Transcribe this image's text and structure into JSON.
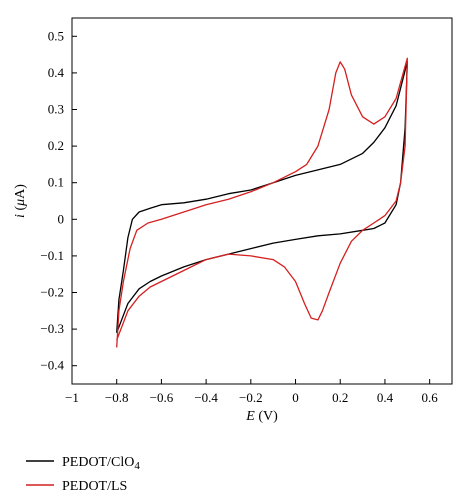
{
  "chart_data": {
    "type": "line",
    "xlabel": {
      "symbol": "E",
      "unit": " (V)"
    },
    "ylabel": {
      "symbol": "i",
      "unit_prefix": " (",
      "unit_mu": "μ",
      "unit_suffix": "A)"
    },
    "xlim": [
      -1,
      0.7
    ],
    "ylim": [
      -0.45,
      0.55
    ],
    "x_ticks": [
      -1,
      -0.8,
      -0.6,
      -0.4,
      -0.2,
      0,
      0.2,
      0.4,
      0.6
    ],
    "x_tick_labels": [
      "−1",
      "−0.8",
      "−0.6",
      "−0.4",
      "−0.2",
      "0",
      "0.2",
      "0.4",
      "0.6"
    ],
    "y_ticks": [
      -0.4,
      -0.3,
      -0.2,
      -0.1,
      0,
      0.1,
      0.2,
      0.3,
      0.4,
      0.5
    ],
    "y_tick_labels": [
      "−0.4",
      "−0.3",
      "−0.2",
      "−0.1",
      "0",
      "0.1",
      "0.2",
      "0.3",
      "0.4",
      "0.5"
    ],
    "grid": false,
    "legend_position": "below-left",
    "series": [
      {
        "name": "PEDOT/ClO4",
        "color": "#000000",
        "points": [
          [
            -0.8,
            -0.31
          ],
          [
            -0.79,
            -0.22
          ],
          [
            -0.77,
            -0.14
          ],
          [
            -0.75,
            -0.05
          ],
          [
            -0.73,
            0.0
          ],
          [
            -0.7,
            0.02
          ],
          [
            -0.65,
            0.03
          ],
          [
            -0.6,
            0.04
          ],
          [
            -0.5,
            0.045
          ],
          [
            -0.4,
            0.055
          ],
          [
            -0.3,
            0.07
          ],
          [
            -0.2,
            0.08
          ],
          [
            -0.1,
            0.1
          ],
          [
            0.0,
            0.12
          ],
          [
            0.1,
            0.135
          ],
          [
            0.2,
            0.15
          ],
          [
            0.3,
            0.18
          ],
          [
            0.35,
            0.21
          ],
          [
            0.4,
            0.25
          ],
          [
            0.45,
            0.31
          ],
          [
            0.5,
            0.43
          ],
          [
            0.49,
            0.25
          ],
          [
            0.47,
            0.1
          ],
          [
            0.45,
            0.04
          ],
          [
            0.42,
            0.01
          ],
          [
            0.4,
            -0.01
          ],
          [
            0.35,
            -0.025
          ],
          [
            0.3,
            -0.03
          ],
          [
            0.2,
            -0.04
          ],
          [
            0.1,
            -0.045
          ],
          [
            0.0,
            -0.055
          ],
          [
            -0.1,
            -0.065
          ],
          [
            -0.2,
            -0.08
          ],
          [
            -0.3,
            -0.095
          ],
          [
            -0.4,
            -0.11
          ],
          [
            -0.5,
            -0.13
          ],
          [
            -0.6,
            -0.155
          ],
          [
            -0.65,
            -0.17
          ],
          [
            -0.7,
            -0.19
          ],
          [
            -0.75,
            -0.23
          ],
          [
            -0.8,
            -0.31
          ]
        ]
      },
      {
        "name": "PEDOT/LS",
        "color": "#d42020",
        "points": [
          [
            -0.8,
            -0.35
          ],
          [
            -0.79,
            -0.25
          ],
          [
            -0.77,
            -0.17
          ],
          [
            -0.74,
            -0.08
          ],
          [
            -0.71,
            -0.03
          ],
          [
            -0.66,
            -0.01
          ],
          [
            -0.6,
            0.0
          ],
          [
            -0.5,
            0.02
          ],
          [
            -0.4,
            0.04
          ],
          [
            -0.3,
            0.055
          ],
          [
            -0.2,
            0.075
          ],
          [
            -0.1,
            0.1
          ],
          [
            0.0,
            0.13
          ],
          [
            0.05,
            0.15
          ],
          [
            0.1,
            0.2
          ],
          [
            0.15,
            0.3
          ],
          [
            0.18,
            0.4
          ],
          [
            0.2,
            0.43
          ],
          [
            0.22,
            0.41
          ],
          [
            0.25,
            0.34
          ],
          [
            0.3,
            0.28
          ],
          [
            0.35,
            0.26
          ],
          [
            0.4,
            0.28
          ],
          [
            0.45,
            0.33
          ],
          [
            0.5,
            0.44
          ],
          [
            0.49,
            0.2
          ],
          [
            0.47,
            0.1
          ],
          [
            0.45,
            0.05
          ],
          [
            0.4,
            0.01
          ],
          [
            0.35,
            -0.01
          ],
          [
            0.3,
            -0.03
          ],
          [
            0.25,
            -0.06
          ],
          [
            0.2,
            -0.12
          ],
          [
            0.15,
            -0.2
          ],
          [
            0.12,
            -0.25
          ],
          [
            0.1,
            -0.275
          ],
          [
            0.07,
            -0.27
          ],
          [
            0.04,
            -0.23
          ],
          [
            0.0,
            -0.17
          ],
          [
            -0.05,
            -0.13
          ],
          [
            -0.1,
            -0.11
          ],
          [
            -0.2,
            -0.1
          ],
          [
            -0.3,
            -0.095
          ],
          [
            -0.4,
            -0.11
          ],
          [
            -0.5,
            -0.14
          ],
          [
            -0.6,
            -0.17
          ],
          [
            -0.65,
            -0.185
          ],
          [
            -0.7,
            -0.21
          ],
          [
            -0.75,
            -0.25
          ],
          [
            -0.8,
            -0.33
          ]
        ]
      }
    ],
    "legend": [
      {
        "label_main": "PEDOT/ClO",
        "label_sub": "4",
        "color": "#000000"
      },
      {
        "label_main": "PEDOT/LS",
        "label_sub": "",
        "color": "#d42020"
      }
    ]
  }
}
